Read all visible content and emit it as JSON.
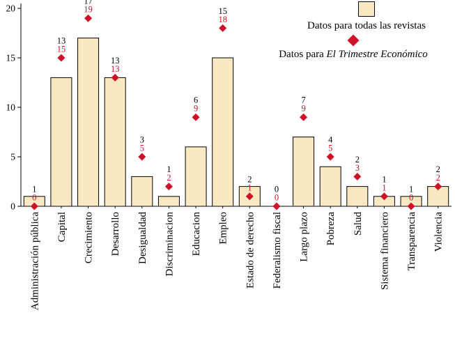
{
  "legend": {
    "bars_label": "Datos para todas las revistas",
    "diamond_label_prefix": "Datos para ",
    "diamond_label_italic": "El Trimestre Económico"
  },
  "colors": {
    "bar_fill": "#FAE8C3",
    "bar_stroke": "#000000",
    "diamond": "#CE1126",
    "axis": "#000000",
    "text": "#000000"
  },
  "chart_data": {
    "type": "bar",
    "title": "",
    "xlabel": "",
    "ylabel": "",
    "ylim": [
      0,
      20
    ],
    "yticks": [
      0,
      5,
      10,
      15,
      20
    ],
    "grid": false,
    "legend_position": "top-right",
    "categories": [
      "Administración pública",
      "Capital",
      "Crecimiento",
      "Desarrollo",
      "Desigualdad",
      "Discriminacion",
      "Educacion",
      "Empleo",
      "Estado de derecho",
      "Federalismo fiscal",
      "Largo plazo",
      "Pobreza",
      "Salud",
      "Sistema financiero",
      "Transparencia",
      "Violencia"
    ],
    "series": [
      {
        "name": "Datos para todas las revistas",
        "type": "bar",
        "color": "#FAE8C3",
        "values": [
          1,
          13,
          17,
          13,
          3,
          1,
          6,
          15,
          2,
          0,
          7,
          4,
          2,
          1,
          1,
          2
        ]
      },
      {
        "name": "Datos para El Trimestre Económico",
        "type": "scatter",
        "marker": "diamond",
        "color": "#CE1126",
        "values": [
          0,
          15,
          19,
          13,
          5,
          2,
          9,
          18,
          1,
          0,
          9,
          5,
          3,
          1,
          0,
          2
        ]
      }
    ]
  }
}
